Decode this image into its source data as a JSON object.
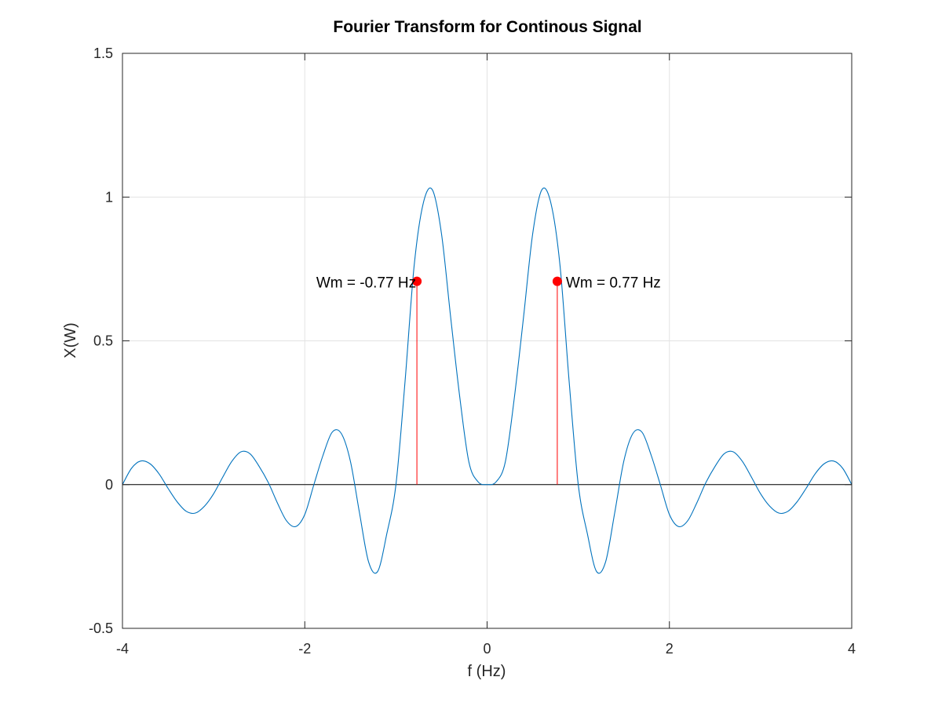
{
  "chart_data": {
    "type": "line",
    "title": "Fourier Transform for Continous Signal",
    "xlabel": "f (Hz)",
    "ylabel": "X(W)",
    "xlim": [
      -4,
      4
    ],
    "ylim": [
      -0.5,
      1.5
    ],
    "xticks": [
      -4,
      -2,
      0,
      2,
      4
    ],
    "xtick_labels": [
      "-4",
      "-2",
      "0",
      "2",
      "4"
    ],
    "yticks": [
      -0.5,
      0,
      0.5,
      1,
      1.5
    ],
    "ytick_labels": [
      "-0.5",
      "0",
      "0.5",
      "1",
      "1.5"
    ],
    "grid": true,
    "series": [
      {
        "color": "#0072bd",
        "x": [
          -4.0,
          -3.9,
          -3.8,
          -3.7,
          -3.6,
          -3.5,
          -3.4,
          -3.3,
          -3.2,
          -3.1,
          -3.0,
          -2.9,
          -2.8,
          -2.7,
          -2.6,
          -2.5,
          -2.4,
          -2.3,
          -2.2,
          -2.1,
          -2.0,
          -1.9,
          -1.8,
          -1.7,
          -1.6,
          -1.5,
          -1.4,
          -1.3,
          -1.2,
          -1.1,
          -1.0,
          -0.9,
          -0.8,
          -0.7,
          -0.6,
          -0.5,
          -0.4,
          -0.3,
          -0.2,
          -0.1,
          0.0,
          0.1,
          0.2,
          0.3,
          0.4,
          0.5,
          0.6,
          0.7,
          0.8,
          0.9,
          1.0,
          1.1,
          1.2,
          1.3,
          1.4,
          1.5,
          1.6,
          1.7,
          1.8,
          1.9,
          2.0,
          2.1,
          2.2,
          2.3,
          2.4,
          2.5,
          2.6,
          2.7,
          2.8,
          2.9,
          3.0,
          3.1,
          3.2,
          3.3,
          3.4,
          3.5,
          3.6,
          3.7,
          3.8,
          3.9,
          4.0
        ],
        "y": [
          0.0,
          0.057,
          0.082,
          0.073,
          0.038,
          -0.013,
          -0.06,
          -0.093,
          -0.099,
          -0.075,
          -0.032,
          0.026,
          0.081,
          0.114,
          0.107,
          0.063,
          0.007,
          -0.064,
          -0.126,
          -0.146,
          -0.104,
          0.0,
          0.102,
          0.182,
          0.178,
          0.082,
          -0.098,
          -0.269,
          -0.302,
          -0.171,
          0.0,
          0.359,
          0.762,
          0.979,
          1.025,
          0.872,
          0.583,
          0.305,
          0.079,
          0.01,
          0.0,
          0.01,
          0.079,
          0.305,
          0.583,
          0.872,
          1.025,
          0.979,
          0.762,
          0.359,
          0.0,
          -0.171,
          -0.302,
          -0.269,
          -0.098,
          0.082,
          0.178,
          0.182,
          0.102,
          0.0,
          -0.104,
          -0.146,
          -0.126,
          -0.064,
          0.007,
          0.063,
          0.107,
          0.114,
          0.081,
          0.026,
          -0.032,
          -0.075,
          -0.099,
          -0.093,
          -0.06,
          -0.013,
          0.038,
          0.073,
          0.082,
          0.057,
          0.0
        ]
      }
    ],
    "zero_line": {
      "y": 0,
      "color": "#000000"
    },
    "markers": [
      {
        "x": -0.77,
        "y": 0.707,
        "label": "Wm = -0.77 Hz",
        "label_side": "left",
        "color": "#ff0000"
      },
      {
        "x": 0.77,
        "y": 0.707,
        "label": "Wm = 0.77 Hz",
        "label_side": "right",
        "color": "#ff0000"
      }
    ]
  }
}
